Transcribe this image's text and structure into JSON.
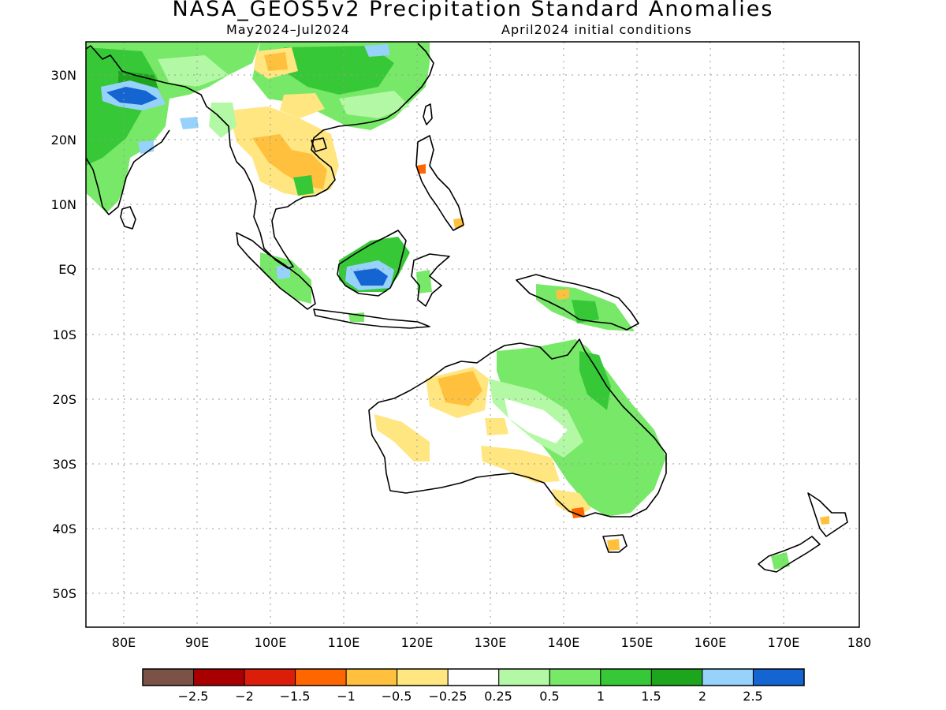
{
  "title": "NASA_GEOS5v2 Precipitation Standard Anomalies",
  "subtitle_period": "May2024–Jul2024",
  "subtitle_init": "April2024 initial conditions",
  "lat_labels": [
    "30N",
    "20N",
    "10N",
    "EQ",
    "10S",
    "20S",
    "30S",
    "40S",
    "50S"
  ],
  "lon_labels": [
    "80E",
    "90E",
    "100E",
    "110E",
    "120E",
    "130E",
    "140E",
    "150E",
    "160E",
    "170E",
    "180"
  ],
  "colorbar": {
    "colors": [
      "#7b5245",
      "#a80000",
      "#dc1d0a",
      "#ff6600",
      "#ffc13d",
      "#ffe680",
      "#ffffff",
      "#b3f8a4",
      "#78e868",
      "#37c837",
      "#1ea51e",
      "#96d2fa",
      "#1465d2"
    ],
    "tick_labels": [
      "−2.5",
      "−2",
      "−1.5",
      "−1",
      "−0.5",
      "−0.25",
      "0.25",
      "0.5",
      "1",
      "1.5",
      "2",
      "2.5"
    ]
  },
  "colors": {
    "frame": "#000000",
    "grid": "#9a9a9a",
    "coast": "#000000"
  }
}
